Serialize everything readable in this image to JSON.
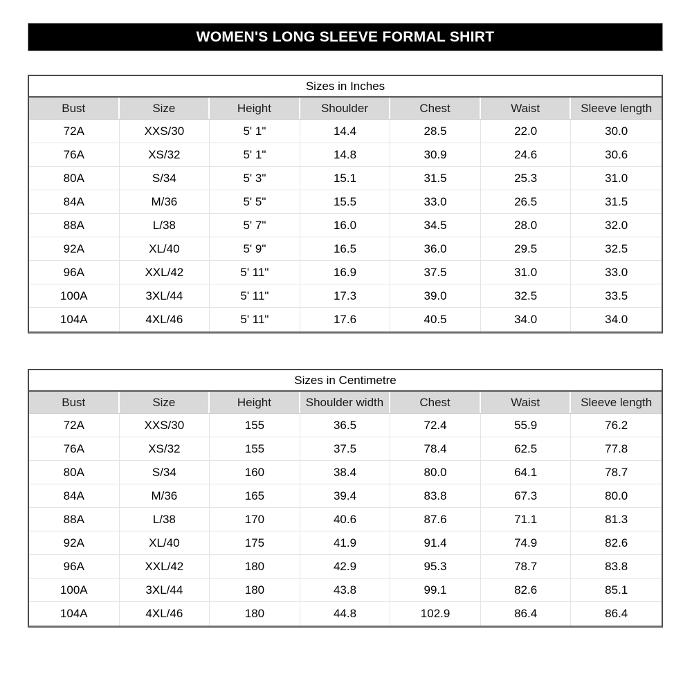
{
  "page_title": "WOMEN'S LONG SLEEVE FORMAL SHIRT",
  "colors": {
    "title_bar_bg": "#000000",
    "title_bar_text": "#ffffff",
    "table_header_bg": "#d9d9d9",
    "outer_border": "#4a4a4a",
    "grid_line": "#e4e4e4"
  },
  "tables": [
    {
      "title": "Sizes in Inches",
      "columns": [
        "Bust",
        "Size",
        "Height",
        "Shoulder",
        "Chest",
        "Waist",
        "Sleeve length"
      ],
      "rows": [
        [
          "72A",
          "XXS/30",
          "5' 1\"",
          "14.4",
          "28.5",
          "22.0",
          "30.0"
        ],
        [
          "76A",
          "XS/32",
          "5' 1\"",
          "14.8",
          "30.9",
          "24.6",
          "30.6"
        ],
        [
          "80A",
          "S/34",
          "5' 3\"",
          "15.1",
          "31.5",
          "25.3",
          "31.0"
        ],
        [
          "84A",
          "M/36",
          "5' 5\"",
          "15.5",
          "33.0",
          "26.5",
          "31.5"
        ],
        [
          "88A",
          "L/38",
          "5' 7\"",
          "16.0",
          "34.5",
          "28.0",
          "32.0"
        ],
        [
          "92A",
          "XL/40",
          "5' 9\"",
          "16.5",
          "36.0",
          "29.5",
          "32.5"
        ],
        [
          "96A",
          "XXL/42",
          "5' 11\"",
          "16.9",
          "37.5",
          "31.0",
          "33.0"
        ],
        [
          "100A",
          "3XL/44",
          "5' 11\"",
          "17.3",
          "39.0",
          "32.5",
          "33.5"
        ],
        [
          "104A",
          "4XL/46",
          "5' 11\"",
          "17.6",
          "40.5",
          "34.0",
          "34.0"
        ]
      ]
    },
    {
      "title": "Sizes in Centimetre",
      "columns": [
        "Bust",
        "Size",
        "Height",
        "Shoulder width",
        "Chest",
        "Waist",
        "Sleeve length"
      ],
      "rows": [
        [
          "72A",
          "XXS/30",
          "155",
          "36.5",
          "72.4",
          "55.9",
          "76.2"
        ],
        [
          "76A",
          "XS/32",
          "155",
          "37.5",
          "78.4",
          "62.5",
          "77.8"
        ],
        [
          "80A",
          "S/34",
          "160",
          "38.4",
          "80.0",
          "64.1",
          "78.7"
        ],
        [
          "84A",
          "M/36",
          "165",
          "39.4",
          "83.8",
          "67.3",
          "80.0"
        ],
        [
          "88A",
          "L/38",
          "170",
          "40.6",
          "87.6",
          "71.1",
          "81.3"
        ],
        [
          "92A",
          "XL/40",
          "175",
          "41.9",
          "91.4",
          "74.9",
          "82.6"
        ],
        [
          "96A",
          "XXL/42",
          "180",
          "42.9",
          "95.3",
          "78.7",
          "83.8"
        ],
        [
          "100A",
          "3XL/44",
          "180",
          "43.8",
          "99.1",
          "82.6",
          "85.1"
        ],
        [
          "104A",
          "4XL/46",
          "180",
          "44.8",
          "102.9",
          "86.4",
          "86.4"
        ]
      ]
    }
  ]
}
